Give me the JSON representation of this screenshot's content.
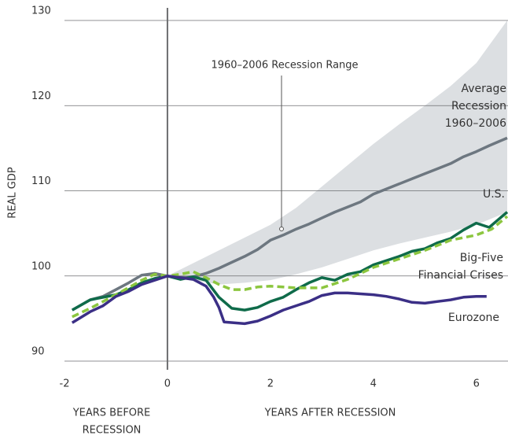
{
  "chart_data": {
    "type": "line",
    "ylabel": "REAL GDP",
    "xlabels": [
      [
        "YEARS BEFORE",
        "RECESSION"
      ],
      [
        "YEARS AFTER RECESSION"
      ]
    ],
    "xlim": [
      -2,
      6.6
    ],
    "xticks": [
      -2,
      0,
      2,
      4,
      6
    ],
    "ylim": [
      90,
      130
    ],
    "yticks": [
      90,
      100,
      110,
      120,
      130
    ],
    "grid": true,
    "range": {
      "label": [
        "1960–2006 Recession Range"
      ],
      "color": "#dcdfe2",
      "x": [
        0,
        0.5,
        1,
        1.5,
        2,
        2.5,
        3,
        3.5,
        4,
        4.5,
        5,
        5.5,
        6,
        6.6
      ],
      "upper": [
        100,
        101.5,
        103,
        104.5,
        106,
        108,
        110.5,
        113,
        115.5,
        117.8,
        120,
        122.3,
        125,
        130
      ],
      "lower": [
        100,
        99.5,
        99,
        99.2,
        99.5,
        100.2,
        101,
        102,
        103,
        103.8,
        104.5,
        105.2,
        106,
        107.5
      ]
    },
    "series": [
      {
        "name": [
          "Average",
          "Recession",
          "1960–2006"
        ],
        "color": "#6d7780",
        "dashed": false,
        "x": [
          -1.85,
          -1.5,
          -1.25,
          -1,
          -0.75,
          -0.5,
          -0.25,
          0,
          0.25,
          0.5,
          0.75,
          1,
          1.25,
          1.5,
          1.75,
          2,
          2.25,
          2.5,
          2.75,
          3,
          3.25,
          3.5,
          3.75,
          4,
          4.25,
          4.5,
          4.75,
          5,
          5.25,
          5.5,
          5.75,
          6,
          6.25,
          6.6
        ],
        "values": [
          96,
          97.2,
          97.6,
          98.4,
          99.2,
          100.1,
          100.3,
          100,
          99.8,
          99.9,
          100.3,
          100.9,
          101.6,
          102.3,
          103.1,
          104.2,
          104.8,
          105.5,
          106.1,
          106.8,
          107.5,
          108.1,
          108.7,
          109.6,
          110.2,
          110.8,
          111.4,
          112,
          112.6,
          113.2,
          114,
          114.6,
          115.3,
          116.2
        ]
      },
      {
        "name": [
          "U.S."
        ],
        "color": "#0f6b4a",
        "dashed": false,
        "x": [
          -1.85,
          -1.5,
          -1,
          -0.75,
          -0.5,
          -0.25,
          0,
          0.25,
          0.5,
          0.75,
          1,
          1.25,
          1.5,
          1.75,
          2,
          2.25,
          2.5,
          2.75,
          3,
          3.25,
          3.5,
          3.75,
          4,
          4.25,
          4.5,
          4.75,
          5,
          5.25,
          5.5,
          5.75,
          6,
          6.25,
          6.5,
          6.6
        ],
        "values": [
          96,
          97.2,
          97.8,
          98.4,
          99.2,
          99.7,
          100,
          99.6,
          99.9,
          99.5,
          97.5,
          96.2,
          96,
          96.3,
          97,
          97.5,
          98.4,
          99.2,
          99.8,
          99.5,
          100.2,
          100.5,
          101.3,
          101.8,
          102.3,
          102.9,
          103.2,
          103.9,
          104.4,
          105.4,
          106.2,
          105.7,
          107,
          107.5
        ]
      },
      {
        "name": [
          "Big-Five",
          "Financial Crises"
        ],
        "color": "#8cc63f",
        "dashed": true,
        "x": [
          -1.85,
          -1.5,
          -1,
          -0.5,
          -0.25,
          0,
          0.25,
          0.5,
          0.75,
          1,
          1.25,
          1.5,
          1.75,
          2,
          2.5,
          3,
          3.5,
          4,
          4.5,
          5,
          5.5,
          6,
          6.3,
          6.6
        ],
        "values": [
          95.2,
          96.2,
          97.8,
          99.5,
          100.2,
          100,
          100.2,
          100.5,
          99.8,
          99,
          98.4,
          98.4,
          98.7,
          98.8,
          98.6,
          98.6,
          99.6,
          101,
          102,
          103,
          104.2,
          104.8,
          105.5,
          107
        ]
      },
      {
        "name": [
          "Eurozone"
        ],
        "color": "#3b2f86",
        "dashed": false,
        "x": [
          -1.85,
          -1.5,
          -1.25,
          -1,
          -0.75,
          -0.5,
          -0.25,
          0,
          0.25,
          0.5,
          0.75,
          0.9,
          1,
          1.1,
          1.5,
          1.75,
          2,
          2.25,
          2.5,
          2.75,
          3,
          3.25,
          3.5,
          3.75,
          4,
          4.25,
          4.5,
          4.75,
          5,
          5.25,
          5.5,
          5.75,
          6,
          6.2
        ],
        "values": [
          94.5,
          95.8,
          96.5,
          97.6,
          98.2,
          99,
          99.5,
          100,
          99.8,
          99.6,
          98.8,
          97.5,
          96.3,
          94.6,
          94.4,
          94.7,
          95.3,
          96,
          96.5,
          97,
          97.7,
          98,
          98,
          97.9,
          97.8,
          97.6,
          97.3,
          96.9,
          96.8,
          97,
          97.2,
          97.5,
          97.6,
          97.6
        ]
      }
    ]
  }
}
